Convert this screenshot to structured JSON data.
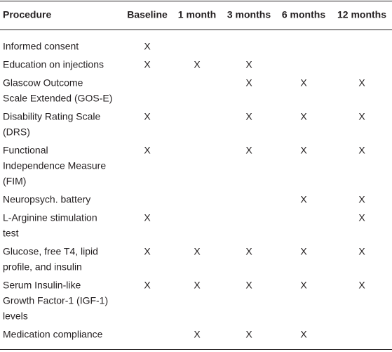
{
  "table": {
    "columns": [
      "Procedure",
      "Baseline",
      "1 month",
      "3 months",
      "6 months",
      "12 months"
    ],
    "rows": [
      {
        "procedure": [
          "Informed consent"
        ],
        "marks": [
          "X",
          null,
          null,
          null,
          null
        ]
      },
      {
        "procedure": [
          "Education on injections"
        ],
        "marks": [
          "X",
          "X",
          "X",
          null,
          null
        ]
      },
      {
        "procedure": [
          "Glascow Outcome",
          "Scale Extended (GOS-E)"
        ],
        "marks": [
          null,
          null,
          "X",
          "X",
          "X"
        ]
      },
      {
        "procedure": [
          "Disability Rating Scale",
          "(DRS)"
        ],
        "marks": [
          "X",
          null,
          "X",
          "X",
          "X"
        ]
      },
      {
        "procedure": [
          "Functional",
          "Independence Measure",
          "(FIM)"
        ],
        "marks": [
          "X",
          null,
          "X",
          "X",
          "X"
        ]
      },
      {
        "procedure": [
          "Neuropsych. battery"
        ],
        "marks": [
          null,
          null,
          null,
          "X",
          "X"
        ]
      },
      {
        "procedure": [
          "L-Arginine stimulation",
          "test"
        ],
        "marks": [
          "X",
          null,
          null,
          null,
          "X"
        ]
      },
      {
        "procedure": [
          "Glucose, free T4, lipid",
          "profile, and insulin"
        ],
        "marks": [
          "X",
          "X",
          "X",
          "X",
          "X"
        ]
      },
      {
        "procedure": [
          "Serum Insulin-like",
          "Growth Factor-1 (IGF-1)",
          "levels"
        ],
        "marks": [
          "X",
          "X",
          "X",
          "X",
          "X"
        ]
      },
      {
        "procedure": [
          "Medication compliance"
        ],
        "marks": [
          null,
          "X",
          "X",
          "X",
          null
        ]
      }
    ]
  }
}
